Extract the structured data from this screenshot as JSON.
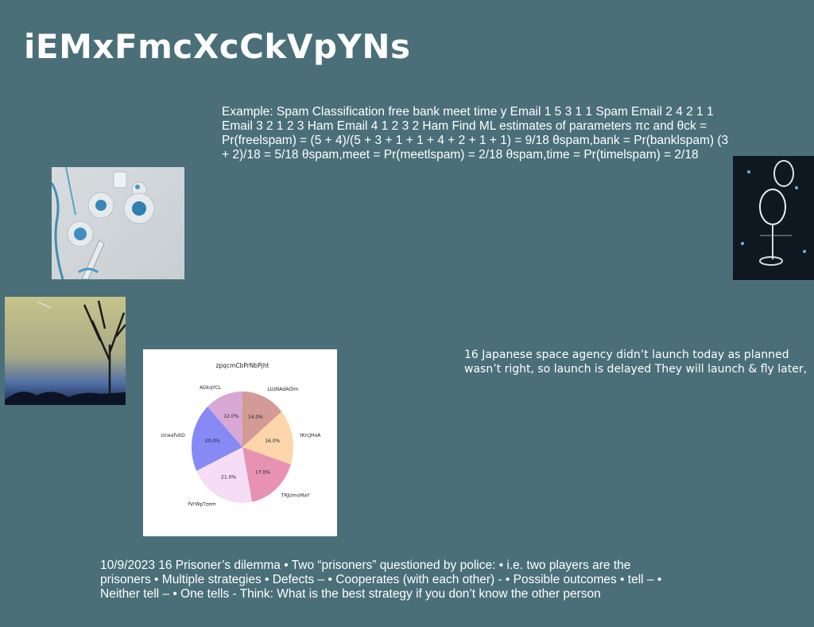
{
  "slide": {
    "title": "iEMxFmcXcCkVpYNs",
    "text_top": "Example: Spam Classification free bank meet time y Email 1 5 3 1 1 Spam Email 2 4 2 1 1 Email 3 2 1 2 3 Ham Email 4 1 2 3 2 Ham Find ML estimates of parameters πc and θck = Pr(freelspam) = (5 + 4)/(5 + 3 + 1 + 1 + 4 + 2 + 1 + 1) = 9/18 θspam,bank = Pr(banklspam) (3 + 2)/18 = 5/18 θspam,meet = Pr(meetlspam) = 2/18 θspam,time = Pr(timelspam) = 2/18",
    "text_mid": "16 Japanese space agency didn’t launch today as planned wasn’t right, so launch is delayed They will launch & fly later,",
    "text_bottom": "10/9/2023 16 Prisoner’s dilemma • Two “prisoners” questioned by police: • i.e. two players are the prisoners • Multiple strategies • Defects – • Cooperates (with each other) - • Possible outcomes • tell – • Neither tell – • One tells - Think: What is the best strategy if you don’t know the other person",
    "background_color": "#4a6f78"
  },
  "images": [
    {
      "name": "blue-sequins-photo"
    },
    {
      "name": "crystal-glasses-photo"
    },
    {
      "name": "sky-trees-photo"
    }
  ],
  "chart_data": {
    "type": "pie",
    "title": "zpqcmCbPrNbPjht",
    "categories": [
      "LUzNAdAOlm",
      "tKrcJHoA",
      "TRJUmvMaY",
      "fVrWpTzem",
      "UcwafvbD",
      "AGkqYCL"
    ],
    "values": [
      14.0,
      16.0,
      17.0,
      21.0,
      20.0,
      12.0
    ],
    "labels": [
      "14.0%",
      "16.0%",
      "17.0%",
      "21.0%",
      "20.0%",
      "12.0%"
    ],
    "colors": [
      "#d39a96",
      "#fcd6aa",
      "#e892b3",
      "#f5ddf5",
      "#8789f5",
      "#d8a8d4"
    ],
    "start_angle": 90,
    "direction": "clockwise",
    "legend": "none"
  }
}
